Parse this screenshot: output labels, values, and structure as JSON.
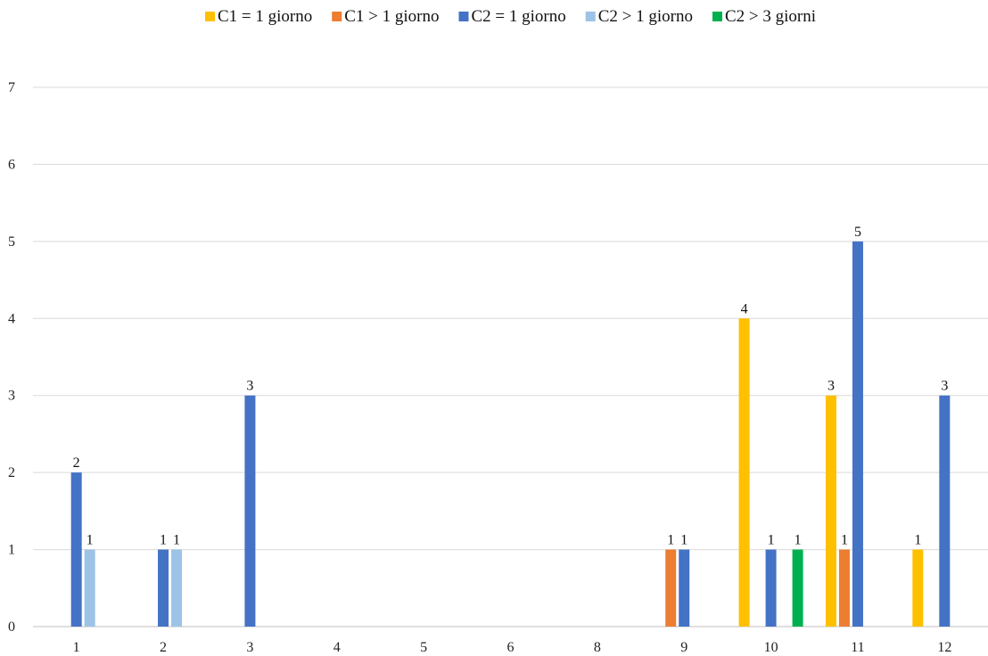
{
  "chart_data": {
    "type": "bar",
    "categories": [
      "1",
      "2",
      "3",
      "4",
      "5",
      "6",
      "8",
      "9",
      "10",
      "11",
      "12"
    ],
    "yticks": [
      "0",
      "1",
      "2",
      "3",
      "4",
      "5",
      "6",
      "7"
    ],
    "ylim": [
      0,
      7
    ],
    "grid": true,
    "legend_position": "top-right",
    "series": [
      {
        "name": "C1 = 1 giorno",
        "color": "#FFC000",
        "values": [
          null,
          null,
          null,
          null,
          null,
          null,
          null,
          null,
          4,
          3,
          1
        ]
      },
      {
        "name": "C1 > 1 giorno",
        "color": "#ED7D31",
        "values": [
          null,
          null,
          null,
          null,
          null,
          null,
          null,
          1,
          null,
          1,
          null
        ]
      },
      {
        "name": "C2 = 1 giorno",
        "color": "#4472C4",
        "values": [
          2,
          1,
          3,
          null,
          null,
          null,
          null,
          1,
          1,
          5,
          3
        ]
      },
      {
        "name": "C2 > 1 giorno",
        "color": "#9DC3E6",
        "values": [
          1,
          1,
          null,
          null,
          null,
          null,
          null,
          null,
          null,
          null,
          null
        ]
      },
      {
        "name": "C2 > 3 giorni",
        "color": "#00B050",
        "values": [
          null,
          null,
          null,
          null,
          null,
          null,
          null,
          null,
          1,
          null,
          null
        ]
      }
    ]
  }
}
